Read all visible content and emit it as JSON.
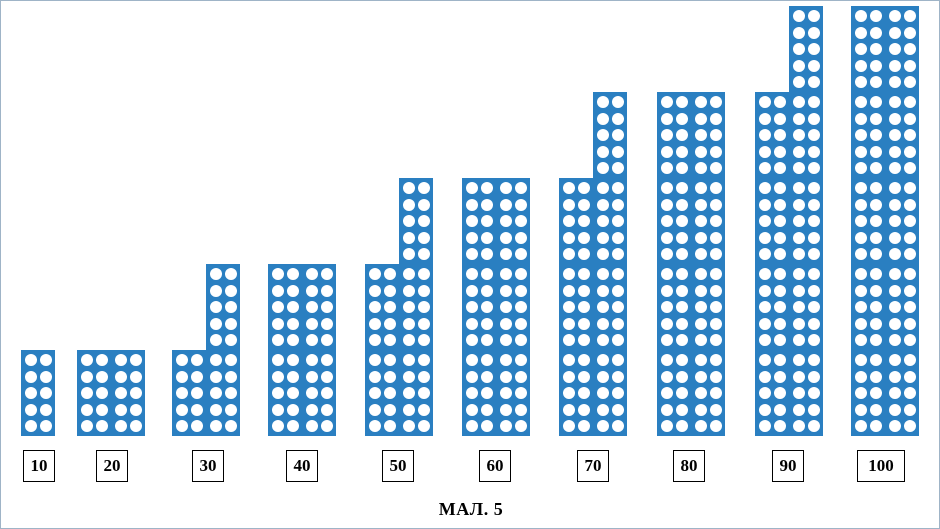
{
  "colors": {
    "block": "#2a7fc1",
    "dot": "#ffffff"
  },
  "figure": {
    "caption": "МАЛ. 5",
    "groups": [
      {
        "label": "10",
        "tens": 1
      },
      {
        "label": "20",
        "tens": 2
      },
      {
        "label": "30",
        "tens": 3
      },
      {
        "label": "40",
        "tens": 4
      },
      {
        "label": "50",
        "tens": 5
      },
      {
        "label": "60",
        "tens": 6
      },
      {
        "label": "70",
        "tens": 7
      },
      {
        "label": "80",
        "tens": 8
      },
      {
        "label": "90",
        "tens": 9
      },
      {
        "label": "100",
        "tens": 10
      }
    ]
  }
}
